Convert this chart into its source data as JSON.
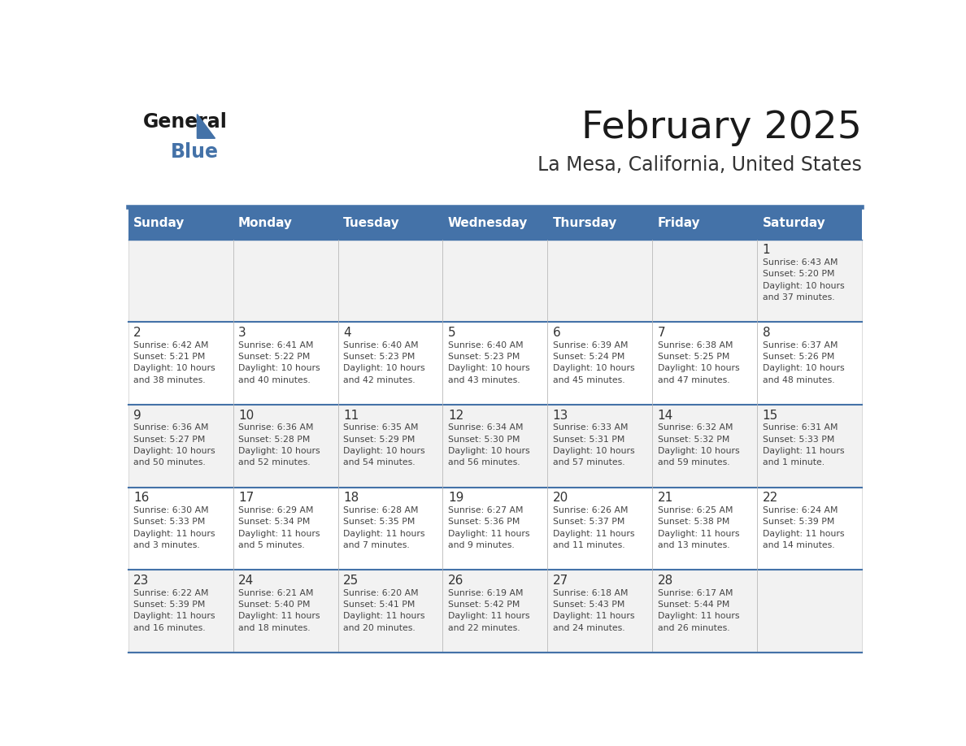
{
  "title": "February 2025",
  "subtitle": "La Mesa, California, United States",
  "header_bg_color": "#4472A8",
  "header_text_color": "#FFFFFF",
  "day_names": [
    "Sunday",
    "Monday",
    "Tuesday",
    "Wednesday",
    "Thursday",
    "Friday",
    "Saturday"
  ],
  "cell_bg_color": "#F2F2F2",
  "cell_bg_alt_color": "#FFFFFF",
  "border_color": "#4472A8",
  "title_color": "#1a1a1a",
  "subtitle_color": "#333333",
  "day_num_color": "#333333",
  "info_text_color": "#444444",
  "logo_general_color": "#1a1a1a",
  "logo_blue_color": "#4472A8",
  "weeks": [
    [
      {
        "day": 0,
        "info": ""
      },
      {
        "day": 0,
        "info": ""
      },
      {
        "day": 0,
        "info": ""
      },
      {
        "day": 0,
        "info": ""
      },
      {
        "day": 0,
        "info": ""
      },
      {
        "day": 0,
        "info": ""
      },
      {
        "day": 1,
        "info": "Sunrise: 6:43 AM\nSunset: 5:20 PM\nDaylight: 10 hours\nand 37 minutes."
      }
    ],
    [
      {
        "day": 2,
        "info": "Sunrise: 6:42 AM\nSunset: 5:21 PM\nDaylight: 10 hours\nand 38 minutes."
      },
      {
        "day": 3,
        "info": "Sunrise: 6:41 AM\nSunset: 5:22 PM\nDaylight: 10 hours\nand 40 minutes."
      },
      {
        "day": 4,
        "info": "Sunrise: 6:40 AM\nSunset: 5:23 PM\nDaylight: 10 hours\nand 42 minutes."
      },
      {
        "day": 5,
        "info": "Sunrise: 6:40 AM\nSunset: 5:23 PM\nDaylight: 10 hours\nand 43 minutes."
      },
      {
        "day": 6,
        "info": "Sunrise: 6:39 AM\nSunset: 5:24 PM\nDaylight: 10 hours\nand 45 minutes."
      },
      {
        "day": 7,
        "info": "Sunrise: 6:38 AM\nSunset: 5:25 PM\nDaylight: 10 hours\nand 47 minutes."
      },
      {
        "day": 8,
        "info": "Sunrise: 6:37 AM\nSunset: 5:26 PM\nDaylight: 10 hours\nand 48 minutes."
      }
    ],
    [
      {
        "day": 9,
        "info": "Sunrise: 6:36 AM\nSunset: 5:27 PM\nDaylight: 10 hours\nand 50 minutes."
      },
      {
        "day": 10,
        "info": "Sunrise: 6:36 AM\nSunset: 5:28 PM\nDaylight: 10 hours\nand 52 minutes."
      },
      {
        "day": 11,
        "info": "Sunrise: 6:35 AM\nSunset: 5:29 PM\nDaylight: 10 hours\nand 54 minutes."
      },
      {
        "day": 12,
        "info": "Sunrise: 6:34 AM\nSunset: 5:30 PM\nDaylight: 10 hours\nand 56 minutes."
      },
      {
        "day": 13,
        "info": "Sunrise: 6:33 AM\nSunset: 5:31 PM\nDaylight: 10 hours\nand 57 minutes."
      },
      {
        "day": 14,
        "info": "Sunrise: 6:32 AM\nSunset: 5:32 PM\nDaylight: 10 hours\nand 59 minutes."
      },
      {
        "day": 15,
        "info": "Sunrise: 6:31 AM\nSunset: 5:33 PM\nDaylight: 11 hours\nand 1 minute."
      }
    ],
    [
      {
        "day": 16,
        "info": "Sunrise: 6:30 AM\nSunset: 5:33 PM\nDaylight: 11 hours\nand 3 minutes."
      },
      {
        "day": 17,
        "info": "Sunrise: 6:29 AM\nSunset: 5:34 PM\nDaylight: 11 hours\nand 5 minutes."
      },
      {
        "day": 18,
        "info": "Sunrise: 6:28 AM\nSunset: 5:35 PM\nDaylight: 11 hours\nand 7 minutes."
      },
      {
        "day": 19,
        "info": "Sunrise: 6:27 AM\nSunset: 5:36 PM\nDaylight: 11 hours\nand 9 minutes."
      },
      {
        "day": 20,
        "info": "Sunrise: 6:26 AM\nSunset: 5:37 PM\nDaylight: 11 hours\nand 11 minutes."
      },
      {
        "day": 21,
        "info": "Sunrise: 6:25 AM\nSunset: 5:38 PM\nDaylight: 11 hours\nand 13 minutes."
      },
      {
        "day": 22,
        "info": "Sunrise: 6:24 AM\nSunset: 5:39 PM\nDaylight: 11 hours\nand 14 minutes."
      }
    ],
    [
      {
        "day": 23,
        "info": "Sunrise: 6:22 AM\nSunset: 5:39 PM\nDaylight: 11 hours\nand 16 minutes."
      },
      {
        "day": 24,
        "info": "Sunrise: 6:21 AM\nSunset: 5:40 PM\nDaylight: 11 hours\nand 18 minutes."
      },
      {
        "day": 25,
        "info": "Sunrise: 6:20 AM\nSunset: 5:41 PM\nDaylight: 11 hours\nand 20 minutes."
      },
      {
        "day": 26,
        "info": "Sunrise: 6:19 AM\nSunset: 5:42 PM\nDaylight: 11 hours\nand 22 minutes."
      },
      {
        "day": 27,
        "info": "Sunrise: 6:18 AM\nSunset: 5:43 PM\nDaylight: 11 hours\nand 24 minutes."
      },
      {
        "day": 28,
        "info": "Sunrise: 6:17 AM\nSunset: 5:44 PM\nDaylight: 11 hours\nand 26 minutes."
      },
      {
        "day": 0,
        "info": ""
      }
    ]
  ]
}
